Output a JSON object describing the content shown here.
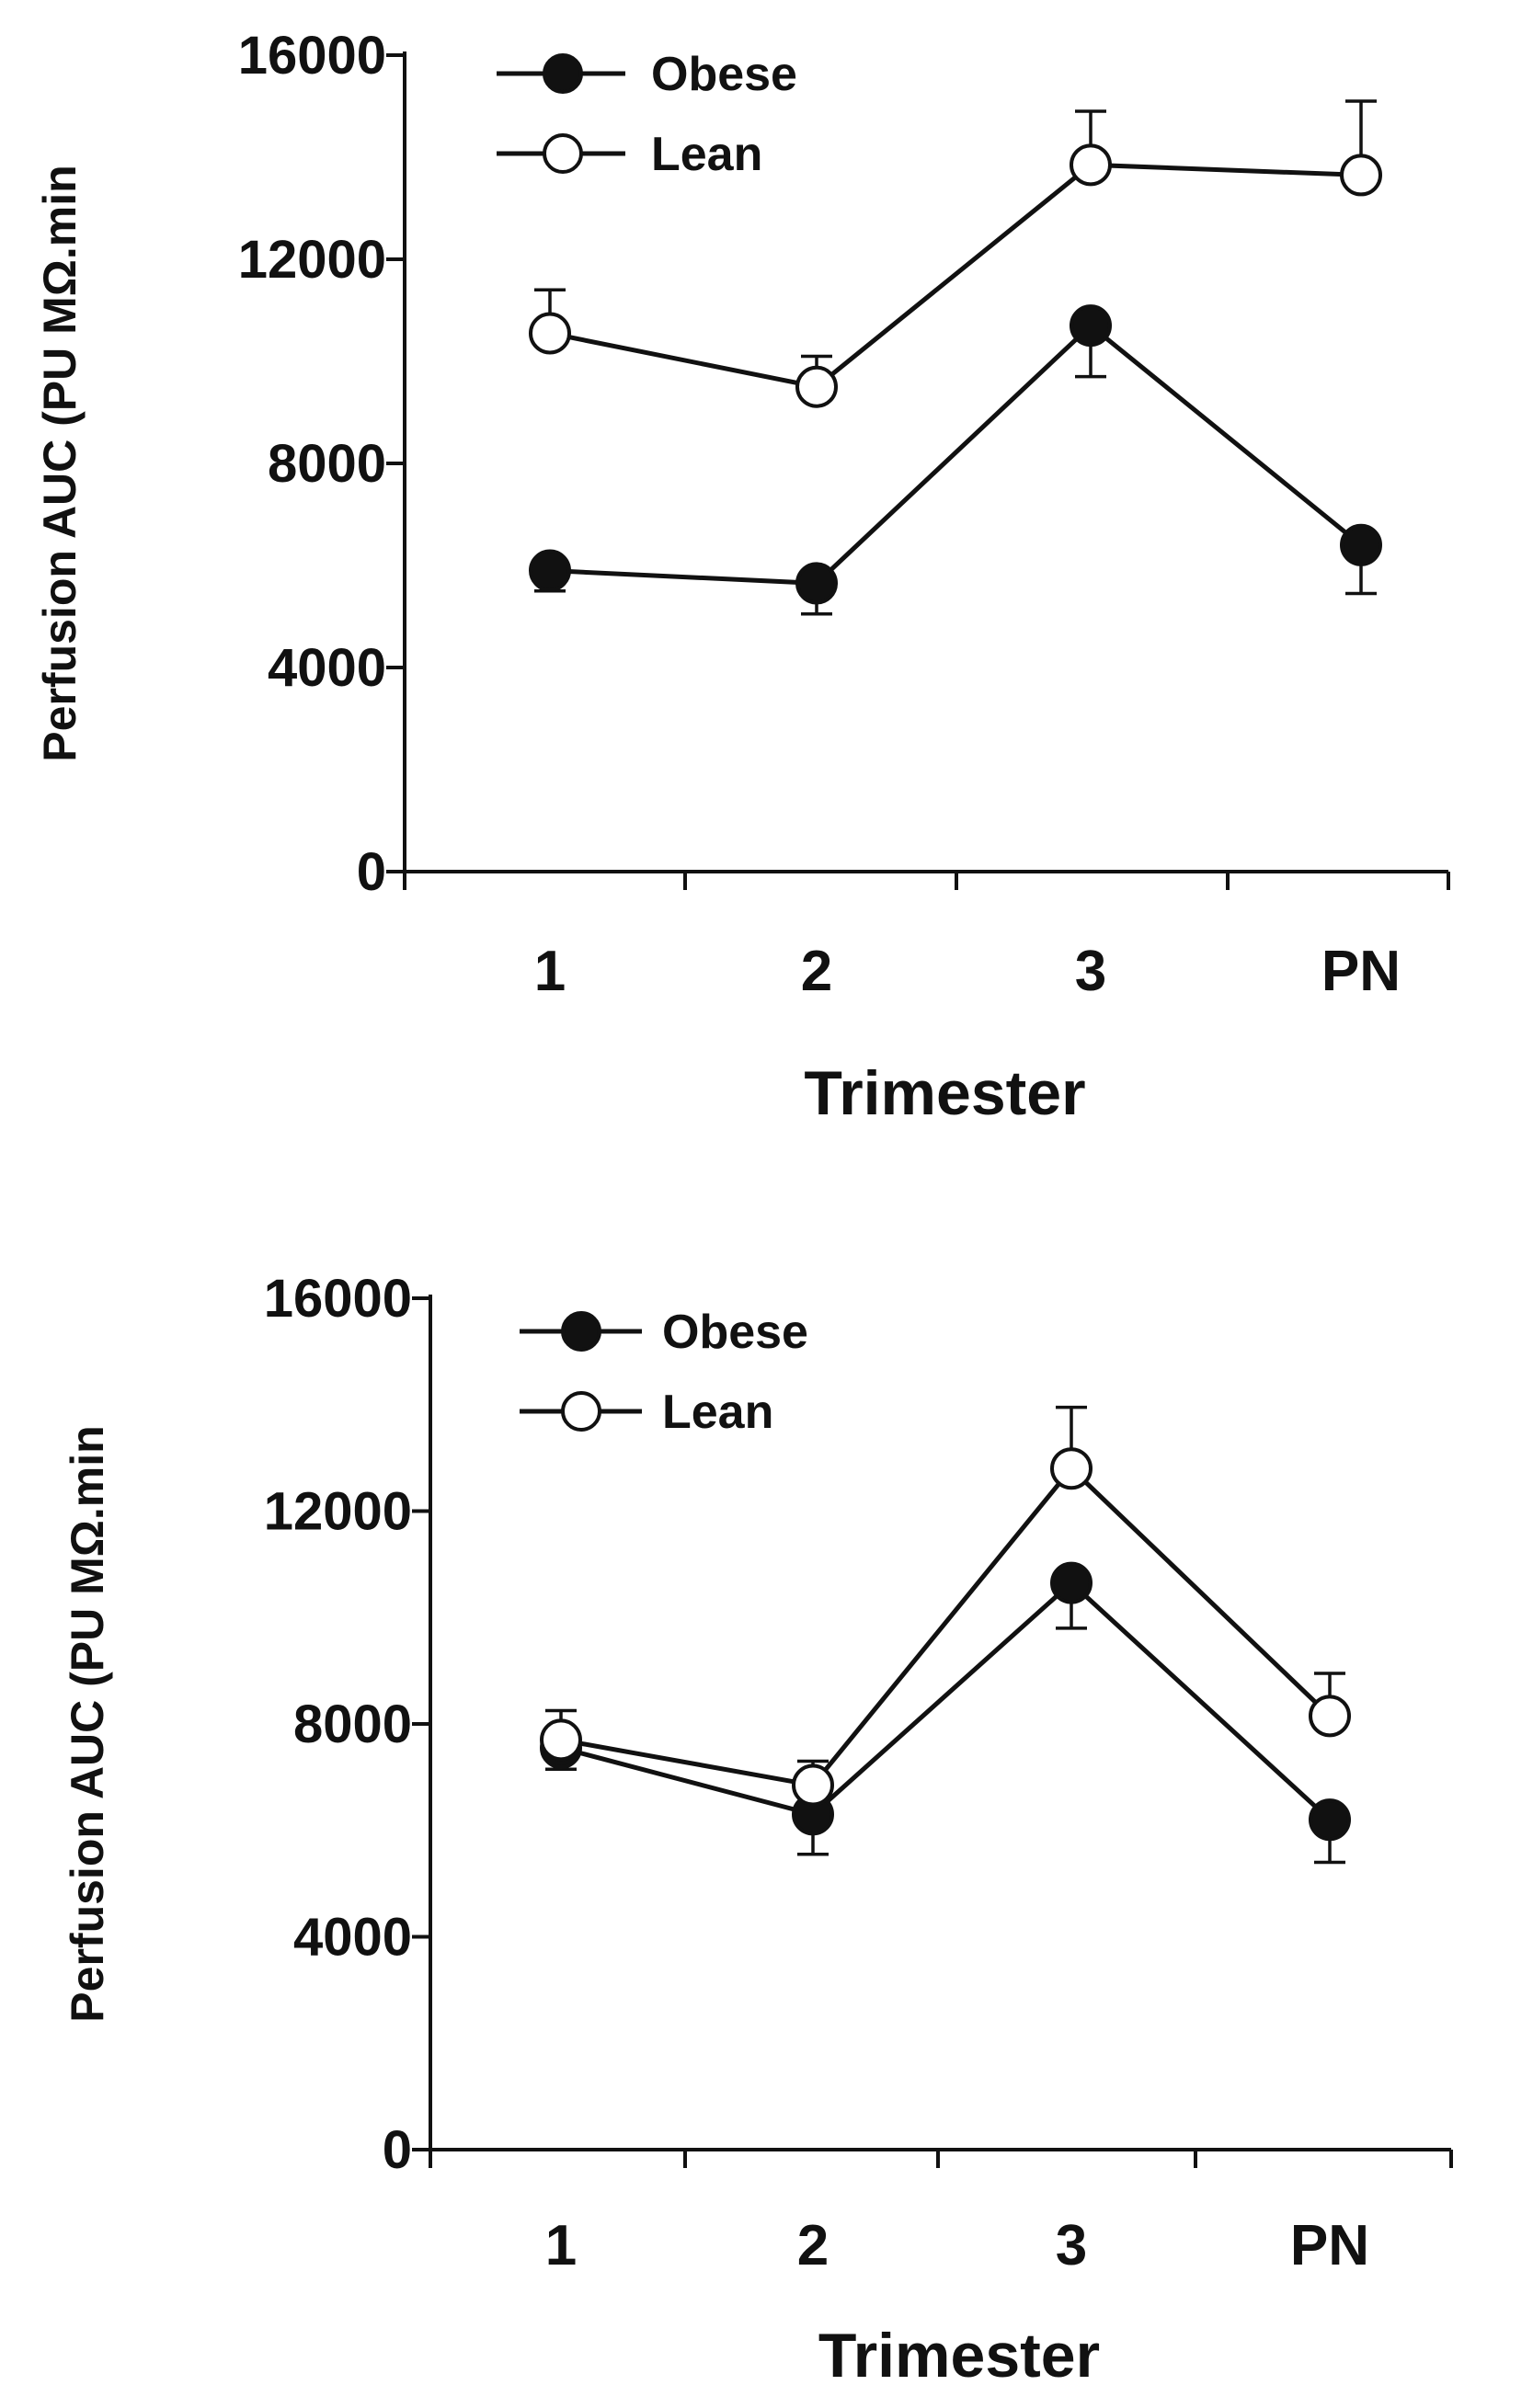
{
  "chart_data": [
    {
      "type": "line",
      "title": "",
      "xlabel": "Trimester",
      "ylabel": "Perfusion AUC (PU MΩ.min",
      "categories": [
        "1",
        "2",
        "3",
        "PN"
      ],
      "ylim": [
        0,
        16000
      ],
      "yticks": [
        "0",
        "4000",
        "8000",
        "12000",
        "16000"
      ],
      "grid": false,
      "legend_position": "top-left",
      "series": [
        {
          "name": "Obese",
          "marker": "filled-circle",
          "values": [
            5900,
            5650,
            10700,
            6400
          ],
          "error_low": [
            5500,
            5050,
            9700,
            5450
          ],
          "error_high": [
            5900,
            5650,
            10700,
            6400
          ]
        },
        {
          "name": "Lean",
          "marker": "open-circle",
          "values": [
            10550,
            9500,
            13850,
            13650
          ],
          "error_low": [
            10550,
            9500,
            13850,
            13650
          ],
          "error_high": [
            11400,
            10100,
            14900,
            15100
          ]
        }
      ]
    },
    {
      "type": "line",
      "title": "",
      "xlabel": "Trimester",
      "ylabel": "Perfusion AUC (PU MΩ.min",
      "categories": [
        "1",
        "2",
        "3",
        "PN"
      ],
      "ylim": [
        0,
        16000
      ],
      "yticks": [
        "0",
        "4000",
        "8000",
        "12000",
        "16000"
      ],
      "grid": false,
      "legend_position": "top-left",
      "series": [
        {
          "name": "Obese",
          "marker": "filled-circle",
          "values": [
            7550,
            6300,
            10650,
            6200
          ],
          "error_low": [
            7150,
            5550,
            9800,
            5400
          ],
          "error_high": [
            7550,
            6300,
            10650,
            6200
          ]
        },
        {
          "name": "Lean",
          "marker": "open-circle",
          "values": [
            7700,
            6850,
            12800,
            8150
          ],
          "error_low": [
            7700,
            6850,
            12800,
            8150
          ],
          "error_high": [
            8250,
            7300,
            13950,
            8950
          ]
        }
      ]
    }
  ]
}
